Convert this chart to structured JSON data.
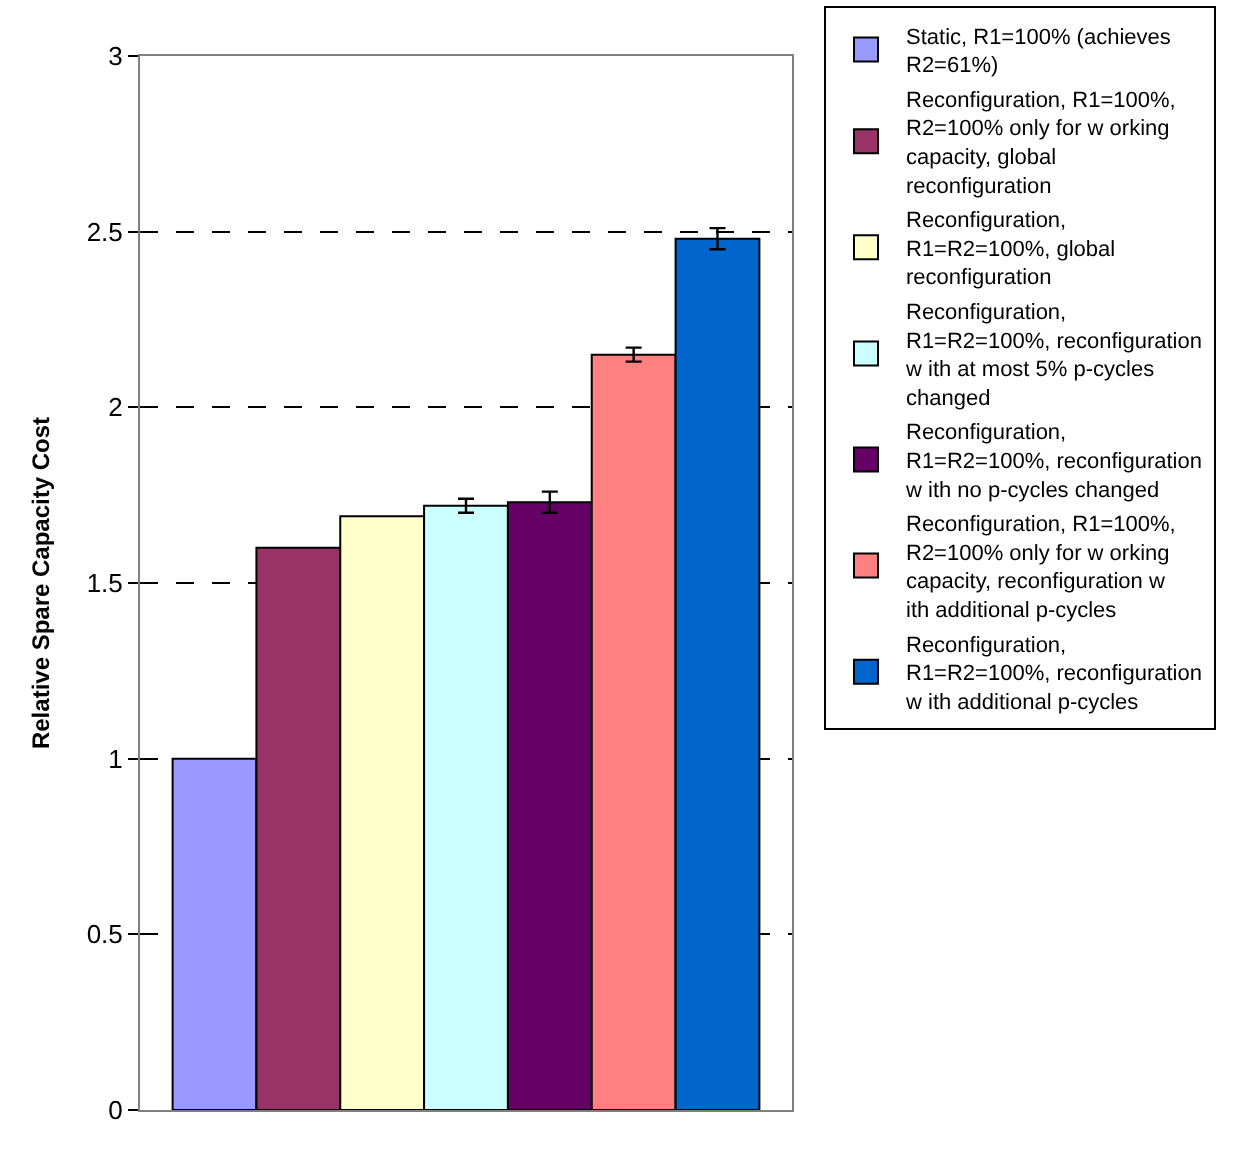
{
  "chart_data": {
    "type": "bar",
    "ylabel": "Relative Spare Capacity Cost",
    "categories": [
      null
    ],
    "series": [
      {
        "name": "Static, R1=100% (achieves R2=61%)",
        "color": "#9999ff",
        "values": [
          1.0
        ]
      },
      {
        "name": "Reconfiguration, R1=100%, R2=100% only for w orking capacity, global reconfiguration",
        "color": "#993366",
        "values": [
          1.6
        ]
      },
      {
        "name": "Reconfiguration, R1=R2=100%, global reconfiguration",
        "color": "#ffffcc",
        "values": [
          1.69
        ]
      },
      {
        "name": "Reconfiguration, R1=R2=100%, reconfiguration w ith at most 5% p-cycles changed",
        "color": "#ccffff",
        "values": [
          1.72
        ],
        "errors": [
          0.02
        ]
      },
      {
        "name": "Reconfiguration, R1=R2=100%, reconfiguration w ith no p-cycles changed",
        "color": "#660066",
        "values": [
          1.73
        ],
        "errors": [
          0.03
        ]
      },
      {
        "name": "Reconfiguration, R1=100%, R2=100% only for w orking capacity, reconfiguration w ith additional p-cycles",
        "color": "#ff8080",
        "values": [
          2.15
        ],
        "errors": [
          0.02
        ]
      },
      {
        "name": "Reconfiguration, R1=R2=100%, reconfiguration w ith additional p-cycles",
        "color": "#0066cc",
        "values": [
          2.48
        ],
        "errors": [
          0.03
        ]
      }
    ],
    "ylim": [
      0,
      3
    ],
    "yticks": [
      0,
      0.5,
      1,
      1.5,
      2,
      2.5,
      3
    ],
    "grid": "y",
    "legend": "right",
    "tick_labels": "y"
  }
}
